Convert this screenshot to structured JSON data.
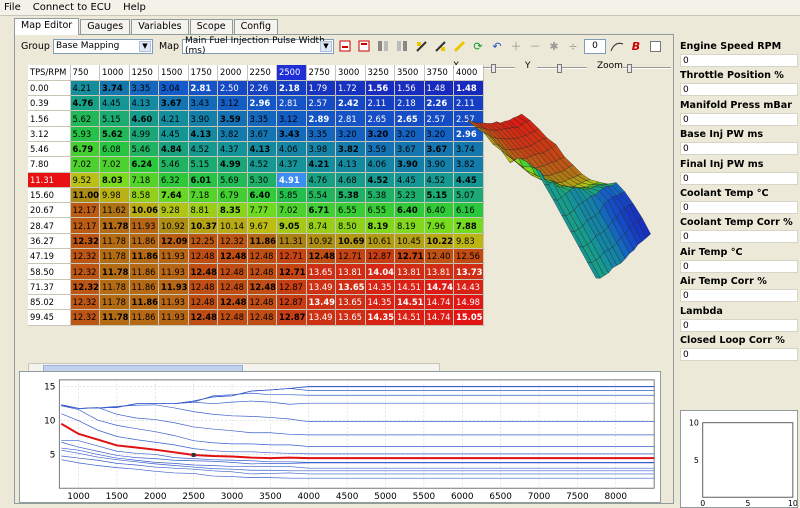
{
  "menu": [
    "File",
    "Connect to ECU",
    "Help"
  ],
  "tabs": [
    "Map Editor",
    "Gauges",
    "Variables",
    "Scope",
    "Config"
  ],
  "toolbar": {
    "group_label": "Group",
    "group_value": "Base Mapping",
    "map_label": "Map",
    "map_value": "Main Fuel Injection Pulse Width (ms)",
    "step_value": "0"
  },
  "axes_controls": {
    "x_label": "X",
    "y_label": "Y",
    "zoom_label": "Zoom"
  },
  "table": {
    "corner": "TPS/RPM",
    "rpm": [
      "750",
      "1000",
      "1250",
      "1500",
      "1750",
      "2000",
      "2250",
      "2500",
      "2750",
      "3000",
      "3250",
      "3500",
      "3750",
      "4000"
    ],
    "tps": [
      "0.00",
      "0.39",
      "1.56",
      "3.12",
      "5.46",
      "7.80",
      "11.31",
      "15.60",
      "20.67",
      "28.47",
      "36.27",
      "47.19",
      "58.50",
      "71.37",
      "85.02",
      "99.45"
    ],
    "cells": [
      [
        "4.21",
        "3.74",
        "3.35",
        "3.04",
        "2.81",
        "2.50",
        "2.26",
        "2.18",
        "1.79",
        "1.72",
        "1.56",
        "1.56",
        "1.48",
        "1.48"
      ],
      [
        "4.76",
        "4.45",
        "4.13",
        "3.67",
        "3.43",
        "3.12",
        "2.96",
        "2.81",
        "2.57",
        "2.42",
        "2.11",
        "2.18",
        "2.26",
        "2.11"
      ],
      [
        "5.62",
        "5.15",
        "4.60",
        "4.21",
        "3.90",
        "3.59",
        "3.35",
        "3.12",
        "2.89",
        "2.81",
        "2.65",
        "2.65",
        "2.57",
        "2.57"
      ],
      [
        "5.93",
        "5.62",
        "4.99",
        "4.45",
        "4.13",
        "3.82",
        "3.67",
        "3.43",
        "3.35",
        "3.20",
        "3.20",
        "3.20",
        "3.20",
        "2.96"
      ],
      [
        "6.79",
        "6.08",
        "5.46",
        "4.84",
        "4.52",
        "4.37",
        "4.13",
        "4.06",
        "3.98",
        "3.82",
        "3.59",
        "3.67",
        "3.67",
        "3.74"
      ],
      [
        "7.02",
        "7.02",
        "6.24",
        "5.46",
        "5.15",
        "4.99",
        "4.52",
        "4.37",
        "4.21",
        "4.13",
        "4.06",
        "3.90",
        "3.90",
        "3.82"
      ],
      [
        "9.52",
        "8.03",
        "7.18",
        "6.32",
        "6.01",
        "5.69",
        "5.30",
        "4.91",
        "4.76",
        "4.68",
        "4.52",
        "4.45",
        "4.52",
        "4.45"
      ],
      [
        "11.00",
        "9.98",
        "8.58",
        "7.64",
        "7.18",
        "6.79",
        "6.40",
        "5.85",
        "5.54",
        "5.38",
        "5.38",
        "5.23",
        "5.15",
        "5.07"
      ],
      [
        "12.17",
        "11.62",
        "10.06",
        "9.28",
        "8.81",
        "8.35",
        "7.77",
        "7.02",
        "6.71",
        "6.55",
        "6.55",
        "6.40",
        "6.40",
        "6.16"
      ],
      [
        "12.17",
        "11.78",
        "11.93",
        "10.92",
        "10.37",
        "10.14",
        "9.67",
        "9.05",
        "8.74",
        "8.50",
        "8.19",
        "8.19",
        "7.96",
        "7.88"
      ],
      [
        "12.32",
        "11.78",
        "11.86",
        "12.09",
        "12.25",
        "12.32",
        "11.86",
        "11.31",
        "10.92",
        "10.69",
        "10.61",
        "10.45",
        "10.22",
        "9.83"
      ],
      [
        "12.32",
        "11.78",
        "11.86",
        "11.93",
        "12.48",
        "12.48",
        "12.48",
        "12.71",
        "12.48",
        "12.71",
        "12.87",
        "12.71",
        "12.40",
        "12.56"
      ],
      [
        "12.32",
        "11.78",
        "11.86",
        "11.93",
        "12.48",
        "12.48",
        "12.48",
        "12.71",
        "13.65",
        "13.81",
        "14.04",
        "13.81",
        "13.81",
        "13.73"
      ],
      [
        "12.32",
        "11.78",
        "11.86",
        "11.93",
        "12.48",
        "12.48",
        "12.48",
        "12.87",
        "13.49",
        "13.65",
        "14.35",
        "14.51",
        "14.74",
        "14.43"
      ],
      [
        "12.32",
        "11.78",
        "11.86",
        "11.93",
        "12.48",
        "12.48",
        "12.48",
        "12.87",
        "13.49",
        "13.65",
        "14.35",
        "14.51",
        "14.74",
        "14.98"
      ],
      [
        "12.32",
        "11.78",
        "11.86",
        "11.93",
        "12.48",
        "12.48",
        "12.48",
        "12.87",
        "13.49",
        "13.65",
        "14.35",
        "14.51",
        "14.74",
        "15.05"
      ]
    ],
    "highlight_col": "2500",
    "highlight_row": "11.31",
    "selected_cell": "4.91"
  },
  "graph": {
    "y_ticks": [
      "15",
      "10",
      "5"
    ],
    "x_ticks": [
      "1000",
      "1500",
      "2000",
      "2500",
      "3000",
      "3500",
      "4000",
      "4500",
      "5000",
      "5500",
      "6000",
      "6500",
      "7000",
      "7500",
      "8000"
    ]
  },
  "params": [
    {
      "name": "Engine Speed RPM",
      "value": "0"
    },
    {
      "name": "Throttle Position %",
      "value": "0"
    },
    {
      "name": "Manifold Press mBar",
      "value": "0"
    },
    {
      "name": "Base Inj PW ms",
      "value": "0"
    },
    {
      "name": "Final Inj PW ms",
      "value": "0"
    },
    {
      "name": "Coolant Temp °C",
      "value": "0"
    },
    {
      "name": "Coolant Temp Corr %",
      "value": "0"
    },
    {
      "name": "Air Temp °C",
      "value": "0"
    },
    {
      "name": "Air Temp Corr %",
      "value": "0"
    },
    {
      "name": "Lambda",
      "value": "0"
    },
    {
      "name": "Closed Loop Corr %",
      "value": "0"
    }
  ],
  "xy_plot": {
    "y_ticks": [
      "10",
      "5"
    ],
    "x_ticks": [
      "0",
      "5",
      "10"
    ]
  },
  "colors": {
    "highlight": "#1e2fd8",
    "active_line": "#e01010",
    "trace": "#3a5fcd"
  }
}
